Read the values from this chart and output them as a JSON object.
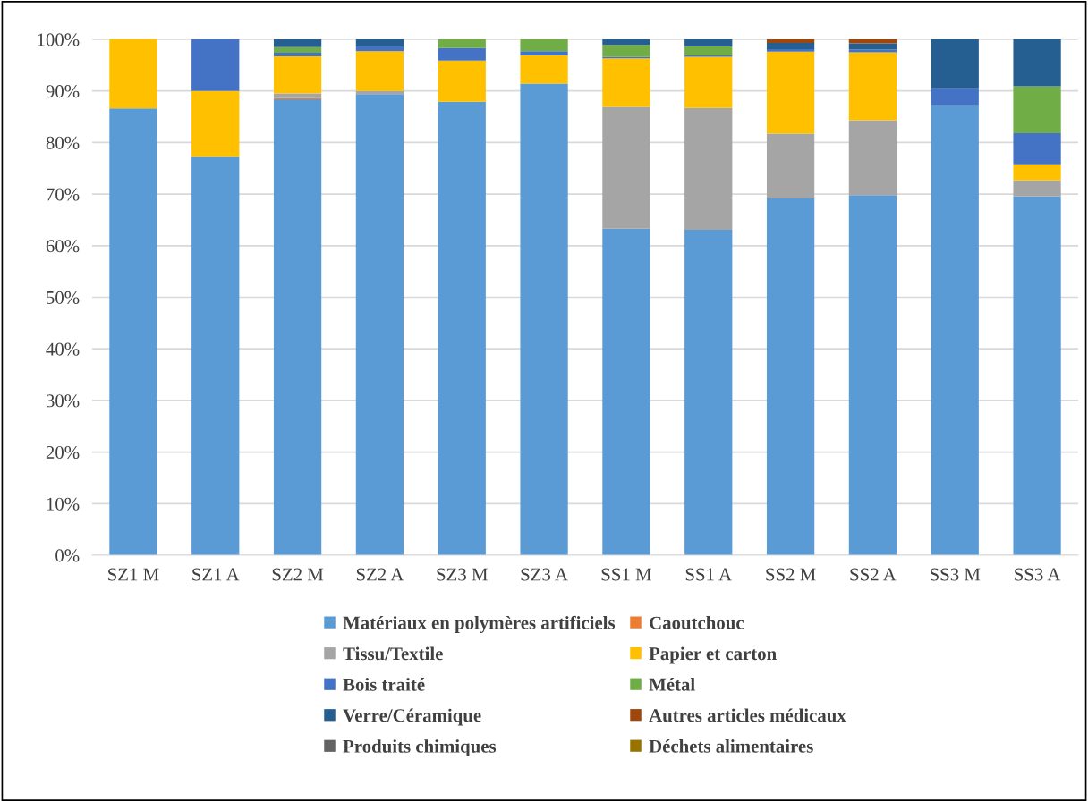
{
  "chart_data": {
    "type": "bar",
    "stacked": true,
    "categories": [
      "SZ1 M",
      "SZ1 A",
      "SZ2 M",
      "SZ2 A",
      "SZ3 M",
      "SZ3 A",
      "SS1 M",
      "SS1 A",
      "SS2 M",
      "SS2 A",
      "SS3 M",
      "SS3 A"
    ],
    "series": [
      {
        "name": "Matériaux en polymères artificiels",
        "color": "#5b9bd5",
        "values": [
          86.6,
          77.2,
          88.4,
          89.4,
          87.9,
          91.4,
          63.3,
          63.1,
          69.2,
          69.8,
          87.2,
          69.6
        ]
      },
      {
        "name": "Caoutchouc",
        "color": "#ed7d31",
        "values": [
          0,
          0,
          0.2,
          0,
          0,
          0,
          0,
          0,
          0,
          0,
          0,
          0
        ]
      },
      {
        "name": "Tissu/Textile",
        "color": "#a5a5a5",
        "values": [
          0,
          0,
          0.9,
          0.6,
          0,
          0,
          23.6,
          23.6,
          12.5,
          14.5,
          0,
          3.1
        ]
      },
      {
        "name": "Papier et carton",
        "color": "#ffc000",
        "values": [
          13.4,
          12.8,
          7.2,
          7.7,
          8.0,
          5.5,
          9.4,
          9.9,
          15.9,
          13.2,
          0,
          3.1
        ]
      },
      {
        "name": "Bois traité",
        "color": "#4472c4",
        "values": [
          0,
          10.0,
          0.7,
          0.9,
          2.4,
          0.8,
          0.3,
          0.3,
          0.5,
          0.5,
          3.3,
          6.0
        ]
      },
      {
        "name": "Métal",
        "color": "#70ad47",
        "values": [
          0,
          0,
          1.1,
          0,
          1.7,
          2.3,
          2.3,
          1.7,
          0,
          0,
          0,
          9.1
        ]
      },
      {
        "name": "Verre/Céramique",
        "color": "#255e91",
        "values": [
          0,
          0,
          1.5,
          1.4,
          0,
          0,
          1.1,
          1.4,
          1.2,
          1.2,
          9.5,
          9.1
        ]
      },
      {
        "name": "Autres articles médicaux",
        "color": "#9e480e",
        "values": [
          0,
          0,
          0,
          0,
          0,
          0,
          0,
          0,
          0.7,
          0.8,
          0,
          0
        ]
      },
      {
        "name": "Produits chimiques",
        "color": "#636363",
        "values": [
          0,
          0,
          0,
          0,
          0,
          0,
          0,
          0,
          0,
          0,
          0,
          0
        ]
      },
      {
        "name": "Déchets alimentaires",
        "color": "#997300",
        "values": [
          0,
          0,
          0,
          0,
          0,
          0,
          0,
          0,
          0,
          0,
          0,
          0
        ]
      }
    ],
    "ylim": [
      0,
      100
    ],
    "yticks": [
      {
        "value": 0,
        "label": "0%"
      },
      {
        "value": 10,
        "label": "10%"
      },
      {
        "value": 20,
        "label": "20%"
      },
      {
        "value": 30,
        "label": "30%"
      },
      {
        "value": 40,
        "label": "40%"
      },
      {
        "value": 50,
        "label": "50%"
      },
      {
        "value": 60,
        "label": "60%"
      },
      {
        "value": 70,
        "label": "70%"
      },
      {
        "value": 80,
        "label": "80%"
      },
      {
        "value": 90,
        "label": "90%"
      },
      {
        "value": 100,
        "label": "100%"
      }
    ],
    "grid": "y",
    "legend": "bottom"
  }
}
